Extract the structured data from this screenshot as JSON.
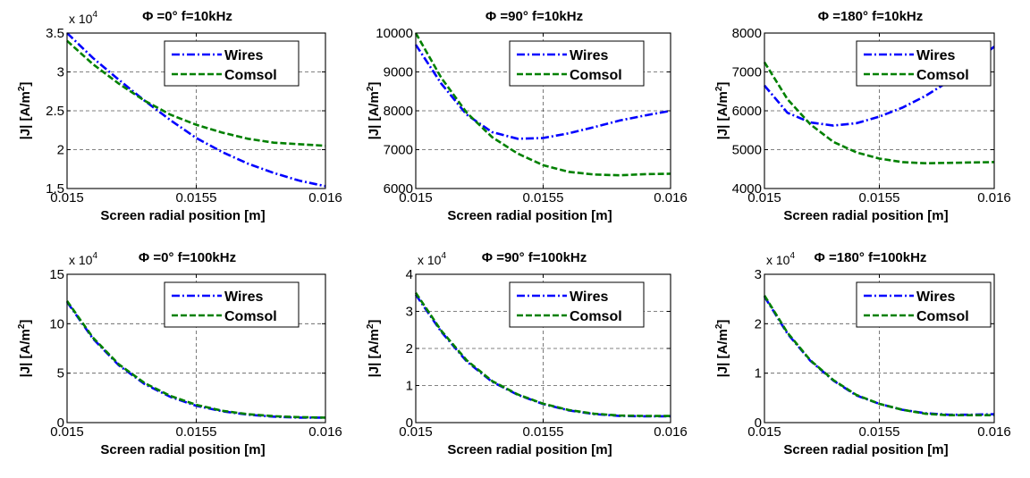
{
  "chart_data": [
    {
      "type": "line",
      "title": "Φ =0° f=10kHz",
      "xlabel": "Screen radial position [m]",
      "ylabel_text": "|J| [A/m",
      "ylabel_sup": "2",
      "ylabel_close": "]",
      "multiplier_base": "x 10",
      "multiplier_exp": "4",
      "xlim": [
        0.015,
        0.016
      ],
      "ylim": [
        1.5,
        3.5
      ],
      "x_ticks": [
        "0.015",
        "0.0155",
        "0.016"
      ],
      "y_ticks": [
        "1.5",
        "2",
        "2.5",
        "3",
        "3.5"
      ],
      "legend_position": "top-right",
      "grid": true,
      "x": [
        0.015,
        0.0151,
        0.0152,
        0.0153,
        0.0154,
        0.0155,
        0.0156,
        0.0157,
        0.0158,
        0.0159,
        0.016
      ],
      "series": [
        {
          "name": "Wires",
          "color": "#0000ff",
          "style": "dashdot",
          "values": [
            3.5,
            3.18,
            2.9,
            2.63,
            2.38,
            2.15,
            1.97,
            1.82,
            1.7,
            1.6,
            1.53
          ]
        },
        {
          "name": "Comsol",
          "color": "#008000",
          "style": "dashed",
          "values": [
            3.4,
            3.1,
            2.85,
            2.63,
            2.45,
            2.32,
            2.22,
            2.14,
            2.09,
            2.07,
            2.05
          ]
        }
      ]
    },
    {
      "type": "line",
      "title": "Φ =90° f=10kHz",
      "xlabel": "Screen radial position [m]",
      "ylabel_text": "|J| [A/m",
      "ylabel_sup": "2",
      "ylabel_close": "]",
      "multiplier_base": "",
      "multiplier_exp": "",
      "xlim": [
        0.015,
        0.016
      ],
      "ylim": [
        6000,
        10000
      ],
      "x_ticks": [
        "0.015",
        "0.0155",
        "0.016"
      ],
      "y_ticks": [
        "6000",
        "7000",
        "8000",
        "9000",
        "10000"
      ],
      "legend_position": "top-right",
      "grid": true,
      "x": [
        0.015,
        0.0151,
        0.0152,
        0.0153,
        0.0154,
        0.0155,
        0.0156,
        0.0157,
        0.0158,
        0.0159,
        0.016
      ],
      "series": [
        {
          "name": "Wires",
          "color": "#0000ff",
          "style": "dashdot",
          "values": [
            9700,
            8700,
            7900,
            7450,
            7280,
            7300,
            7420,
            7580,
            7750,
            7880,
            8000
          ]
        },
        {
          "name": "Comsol",
          "color": "#008000",
          "style": "dashed",
          "values": [
            10000,
            8850,
            7950,
            7320,
            6900,
            6600,
            6430,
            6360,
            6340,
            6370,
            6380
          ]
        }
      ]
    },
    {
      "type": "line",
      "title": "Φ =180° f=10kHz",
      "xlabel": "Screen radial position [m]",
      "ylabel_text": "|J| [A/m",
      "ylabel_sup": "2",
      "ylabel_close": "]",
      "multiplier_base": "",
      "multiplier_exp": "",
      "xlim": [
        0.015,
        0.016
      ],
      "ylim": [
        4000,
        8000
      ],
      "x_ticks": [
        "0.015",
        "0.0155",
        "0.016"
      ],
      "y_ticks": [
        "4000",
        "5000",
        "6000",
        "7000",
        "8000"
      ],
      "legend_position": "top-right",
      "grid": true,
      "x": [
        0.015,
        0.0151,
        0.0152,
        0.0153,
        0.0154,
        0.0155,
        0.0156,
        0.0157,
        0.0158,
        0.0159,
        0.016
      ],
      "series": [
        {
          "name": "Wires",
          "color": "#0000ff",
          "style": "dashdot",
          "values": [
            6650,
            5950,
            5700,
            5620,
            5680,
            5850,
            6080,
            6380,
            6750,
            7200,
            7650
          ]
        },
        {
          "name": "Comsol",
          "color": "#008000",
          "style": "dashed",
          "values": [
            7250,
            6300,
            5650,
            5200,
            4930,
            4770,
            4680,
            4650,
            4660,
            4670,
            4680
          ]
        }
      ]
    },
    {
      "type": "line",
      "title": "Φ =0° f=100kHz",
      "xlabel": "Screen radial position [m]",
      "ylabel_text": "|J| [A/m",
      "ylabel_sup": "2",
      "ylabel_close": "]",
      "multiplier_base": "x 10",
      "multiplier_exp": "4",
      "xlim": [
        0.015,
        0.016
      ],
      "ylim": [
        0,
        15
      ],
      "x_ticks": [
        "0.015",
        "0.0155",
        "0.016"
      ],
      "y_ticks": [
        "0",
        "5",
        "10",
        "15"
      ],
      "legend_position": "top-right",
      "grid": true,
      "x": [
        0.015,
        0.0151,
        0.0152,
        0.0153,
        0.0154,
        0.0155,
        0.0156,
        0.0157,
        0.0158,
        0.0159,
        0.016
      ],
      "series": [
        {
          "name": "Wires",
          "color": "#0000ff",
          "style": "dashdot",
          "values": [
            12.2,
            8.5,
            5.8,
            3.9,
            2.6,
            1.7,
            1.15,
            0.8,
            0.6,
            0.5,
            0.5
          ]
        },
        {
          "name": "Comsol",
          "color": "#008000",
          "style": "dashed",
          "values": [
            12.3,
            8.6,
            5.9,
            4.0,
            2.7,
            1.8,
            1.2,
            0.85,
            0.65,
            0.55,
            0.5
          ]
        }
      ]
    },
    {
      "type": "line",
      "title": "Φ =90° f=100kHz",
      "xlabel": "Screen radial position [m]",
      "ylabel_text": "|J| [A/m",
      "ylabel_sup": "2",
      "ylabel_close": "]",
      "multiplier_base": "x 10",
      "multiplier_exp": "4",
      "xlim": [
        0.015,
        0.016
      ],
      "ylim": [
        0,
        4
      ],
      "x_ticks": [
        "0.015",
        "0.0155",
        "0.016"
      ],
      "y_ticks": [
        "0",
        "1",
        "2",
        "3",
        "4"
      ],
      "legend_position": "top-right",
      "grid": true,
      "x": [
        0.015,
        0.0151,
        0.0152,
        0.0153,
        0.0154,
        0.0155,
        0.0156,
        0.0157,
        0.0158,
        0.0159,
        0.016
      ],
      "series": [
        {
          "name": "Wires",
          "color": "#0000ff",
          "style": "dashdot",
          "values": [
            3.45,
            2.45,
            1.65,
            1.1,
            0.75,
            0.5,
            0.33,
            0.23,
            0.18,
            0.17,
            0.17
          ]
        },
        {
          "name": "Comsol",
          "color": "#008000",
          "style": "dashed",
          "values": [
            3.5,
            2.48,
            1.68,
            1.12,
            0.76,
            0.51,
            0.34,
            0.24,
            0.19,
            0.18,
            0.18
          ]
        }
      ]
    },
    {
      "type": "line",
      "title": "Φ =180° f=100kHz",
      "xlabel": "Screen radial position [m]",
      "ylabel_text": "|J| [A/m",
      "ylabel_sup": "2",
      "ylabel_close": "]",
      "multiplier_base": "x 10",
      "multiplier_exp": "4",
      "xlim": [
        0.015,
        0.016
      ],
      "ylim": [
        0,
        3
      ],
      "x_ticks": [
        "0.015",
        "0.0155",
        "0.016"
      ],
      "y_ticks": [
        "0",
        "1",
        "2",
        "3"
      ],
      "legend_position": "top-right",
      "grid": true,
      "x": [
        0.015,
        0.0151,
        0.0152,
        0.0153,
        0.0154,
        0.0155,
        0.0156,
        0.0157,
        0.0158,
        0.0159,
        0.016
      ],
      "series": [
        {
          "name": "Wires",
          "color": "#0000ff",
          "style": "dashdot",
          "values": [
            2.55,
            1.8,
            1.25,
            0.85,
            0.55,
            0.38,
            0.26,
            0.19,
            0.16,
            0.16,
            0.17
          ]
        },
        {
          "name": "Comsol",
          "color": "#008000",
          "style": "dashed",
          "values": [
            2.57,
            1.82,
            1.26,
            0.86,
            0.56,
            0.38,
            0.26,
            0.18,
            0.15,
            0.15,
            0.15
          ]
        }
      ]
    }
  ]
}
